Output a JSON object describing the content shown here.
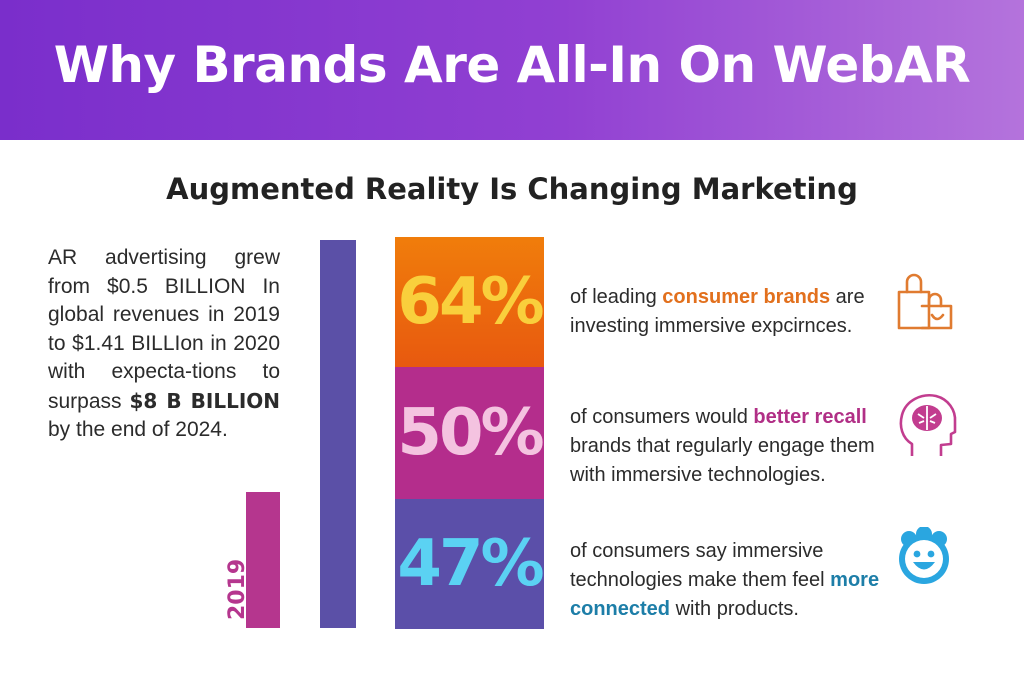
{
  "header": {
    "title": "Why Brands Are All-In On WebAR"
  },
  "subtitle": "Augmented Reality Is Changing Marketing",
  "growth_text": {
    "part1": "AR advertising grew from $0.5 BILLION In global revenues in 2019 to $1.41 BILLIon in 2020 with expecta-tions to surpass ",
    "bold": "$8 B BILLION",
    "part2": " by the end of 2024."
  },
  "chart": {
    "label_2019": "2019",
    "bar_2019_fraction": 0.35,
    "bar_2020_fraction": 1.0,
    "colors": {
      "bar_2019": "#b5368e",
      "bar_2020": "#5b50a7"
    }
  },
  "stats": [
    {
      "value": "64%",
      "pre": "of leading ",
      "highlight": "consumer brands",
      "post": " are investing immersive expcirnces.",
      "icon": "shopping-bag-icon"
    },
    {
      "value": "50%",
      "pre": "of consumers would ",
      "highlight": "better recall",
      "post": " brands that regularly engage them with immersive technologies.",
      "icon": "brain-head-icon"
    },
    {
      "value": "47%",
      "pre": "of consumers say immersive technologies make them feel ",
      "highlight": "more connected",
      "post": " with products.",
      "icon": "smiley-face-icon"
    }
  ]
}
